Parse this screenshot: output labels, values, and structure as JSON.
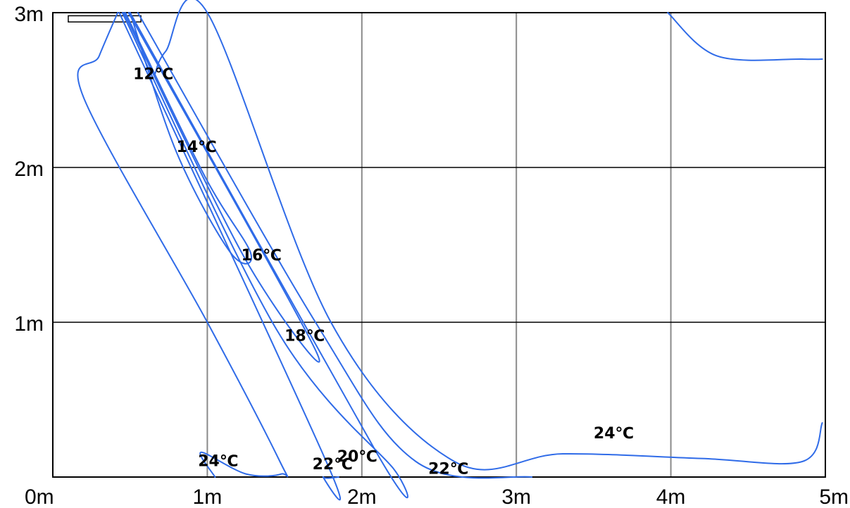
{
  "chart_data": {
    "type": "line",
    "title": "",
    "xlabel": "",
    "ylabel": "",
    "xlim": [
      0,
      5
    ],
    "ylim": [
      0,
      3
    ],
    "grid": true,
    "x_ticks": [
      "0m",
      "1m",
      "2m",
      "3m",
      "4m",
      "5m"
    ],
    "y_ticks": [
      "1m",
      "2m",
      "3m"
    ],
    "line_color": "#2f6be8",
    "grid_color": "#8a8a8a",
    "frame_color": "#000000",
    "source_unit": {
      "x0": 0.1,
      "x1": 0.57,
      "y": 2.94,
      "height": 0.04
    },
    "isotherm_labels": [
      {
        "text": "12℃",
        "x": 0.52,
        "y": 2.57
      },
      {
        "text": "14℃",
        "x": 0.8,
        "y": 2.1
      },
      {
        "text": "16℃",
        "x": 1.22,
        "y": 1.4
      },
      {
        "text": "18℃",
        "x": 1.5,
        "y": 0.88
      },
      {
        "text": "20℃",
        "x": 1.84,
        "y": 0.1
      },
      {
        "text": "22℃",
        "x": 1.68,
        "y": 0.05
      },
      {
        "text": "22℃",
        "x": 2.43,
        "y": 0.02
      },
      {
        "text": "24℃",
        "x": 0.94,
        "y": 0.07
      },
      {
        "text": "24℃",
        "x": 3.5,
        "y": 0.25
      }
    ],
    "isotherms": [
      {
        "name": "24℃",
        "points": [
          [
            0.42,
            3.0
          ],
          [
            0.3,
            2.72
          ],
          [
            0.2,
            2.45
          ],
          [
            1.0,
            1.0
          ],
          [
            1.47,
            0.1
          ],
          [
            1.48,
            0.02
          ],
          [
            1.25,
            0.02
          ],
          [
            0.96,
            0.16
          ],
          [
            1.05,
            0.0
          ]
        ]
      },
      {
        "name": "22℃",
        "points": [
          [
            0.43,
            3.0
          ],
          [
            1.77,
            0.1
          ],
          [
            1.75,
            0.0
          ],
          [
            1.85,
            0.0
          ]
        ]
      },
      {
        "name": "20℃",
        "points": [
          [
            0.45,
            3.0
          ],
          [
            1.45,
            0.95
          ],
          [
            2.2,
            0.06
          ],
          [
            2.1,
            0.15
          ],
          [
            0.5,
            3.0
          ]
        ]
      },
      {
        "name": "18℃",
        "points": [
          [
            0.46,
            3.0
          ],
          [
            1.25,
            1.4
          ],
          [
            1.7,
            0.82
          ],
          [
            0.49,
            3.0
          ]
        ]
      },
      {
        "name": "16℃",
        "points": [
          [
            0.47,
            3.0
          ],
          [
            0.98,
            1.95
          ],
          [
            1.28,
            1.45
          ],
          [
            1.15,
            1.45
          ],
          [
            0.8,
            2.1
          ],
          [
            0.5,
            3.0
          ]
        ]
      },
      {
        "name": "22℃",
        "points": [
          [
            0.55,
            3.0
          ],
          [
            1.7,
            1.0
          ],
          [
            2.35,
            0.1
          ],
          [
            3.1,
            0.0
          ]
        ]
      },
      {
        "name": "24℃",
        "points": [
          [
            0.66,
            2.6
          ],
          [
            0.73,
            2.75
          ],
          [
            1.0,
            3.0
          ],
          [
            1.8,
            1.0
          ],
          [
            2.6,
            0.1
          ],
          [
            3.3,
            0.15
          ],
          [
            4.2,
            0.12
          ],
          [
            4.85,
            0.1
          ],
          [
            4.98,
            0.35
          ]
        ]
      },
      {
        "name": "24℃",
        "points": [
          [
            3.98,
            3.0
          ],
          [
            4.3,
            2.72
          ],
          [
            4.85,
            2.7
          ],
          [
            4.98,
            2.7
          ]
        ]
      }
    ]
  }
}
